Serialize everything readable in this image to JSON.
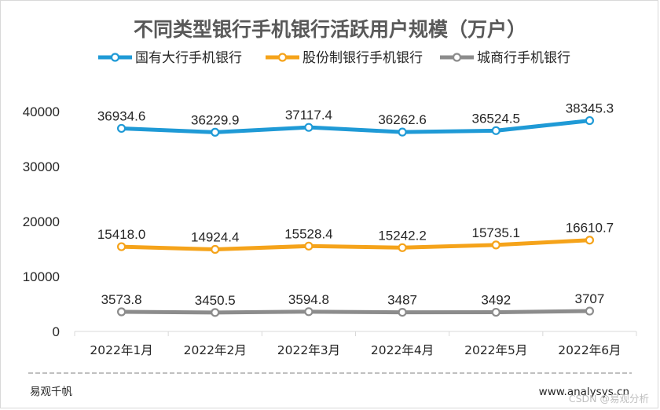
{
  "chart_data": {
    "type": "line",
    "title": "不同类型银行手机银行活跃用户规模（万户）",
    "categories": [
      "2022年1月",
      "2022年2月",
      "2022年3月",
      "2022年4月",
      "2022年5月",
      "2022年6月"
    ],
    "ylim": [
      0,
      40000
    ],
    "yticks": [
      0,
      10000,
      20000,
      30000,
      40000
    ],
    "ytick_labels": [
      "0",
      "10000",
      "20000",
      "30000",
      "40000"
    ],
    "grid": false,
    "legend_position": "top",
    "series": [
      {
        "name": "国有大行手机银行",
        "color": "#1F9AD6",
        "values": [
          36934.6,
          36229.9,
          37117.4,
          36262.6,
          36524.5,
          38345.3
        ],
        "labels": [
          "36934.6",
          "36229.9",
          "37117.4",
          "36262.6",
          "36524.5",
          "38345.3"
        ]
      },
      {
        "name": "股份制银行手机银行",
        "color": "#F5A31A",
        "values": [
          15418.0,
          14924.4,
          15528.4,
          15242.2,
          15735.1,
          16610.7
        ],
        "labels": [
          "15418.0",
          "14924.4",
          "15528.4",
          "15242.2",
          "15735.1",
          "16610.7"
        ]
      },
      {
        "name": "城商行手机银行",
        "color": "#8C8C8C",
        "values": [
          3573.8,
          3450.5,
          3594.8,
          3487,
          3492,
          3707
        ],
        "labels": [
          "3573.8",
          "3450.5",
          "3594.8",
          "3487",
          "3492",
          "3707"
        ]
      }
    ]
  },
  "footer": {
    "source": "易观千帆",
    "website": "www.analysys.cn",
    "watermark": "CSDN @易观分析"
  }
}
